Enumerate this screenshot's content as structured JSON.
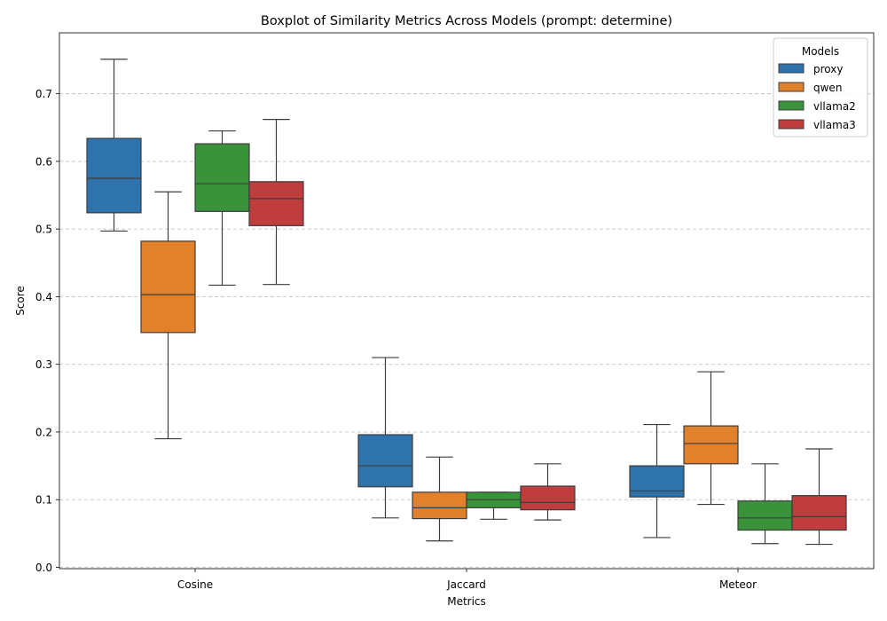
{
  "chart_data": {
    "type": "boxplot",
    "title": "Boxplot of Similarity Metrics Across Models (prompt: determine)",
    "xlabel": "Metrics",
    "ylabel": "Score",
    "ylim": [
      -0.002,
      0.79
    ],
    "yticks": [
      "0.0",
      "0.1",
      "0.2",
      "0.3",
      "0.4",
      "0.5",
      "0.6",
      "0.7"
    ],
    "grid": "y-dashed",
    "legend": {
      "title": "Models",
      "position": "top-right"
    },
    "categories": [
      "Cosine",
      "Jaccard",
      "Meteor"
    ],
    "series": [
      {
        "name": "proxy",
        "color": "#2f73ac",
        "boxes": [
          {
            "whislo": 0.497,
            "q1": 0.524,
            "med": 0.575,
            "q3": 0.634,
            "whishi": 0.751
          },
          {
            "whislo": 0.073,
            "q1": 0.119,
            "med": 0.15,
            "q3": 0.196,
            "whishi": 0.31
          },
          {
            "whislo": 0.044,
            "q1": 0.104,
            "med": 0.113,
            "q3": 0.15,
            "whishi": 0.211
          }
        ]
      },
      {
        "name": "qwen",
        "color": "#e1812c",
        "boxes": [
          {
            "whislo": 0.19,
            "q1": 0.347,
            "med": 0.403,
            "q3": 0.482,
            "whishi": 0.555
          },
          {
            "whislo": 0.039,
            "q1": 0.072,
            "med": 0.088,
            "q3": 0.111,
            "whishi": 0.163
          },
          {
            "whislo": 0.093,
            "q1": 0.153,
            "med": 0.183,
            "q3": 0.209,
            "whishi": 0.289
          }
        ]
      },
      {
        "name": "vllama2",
        "color": "#3a923a",
        "boxes": [
          {
            "whislo": 0.417,
            "q1": 0.526,
            "med": 0.567,
            "q3": 0.626,
            "whishi": 0.645
          },
          {
            "whislo": 0.071,
            "q1": 0.088,
            "med": 0.1,
            "q3": 0.111,
            "whishi": 0.111
          },
          {
            "whislo": 0.035,
            "q1": 0.055,
            "med": 0.073,
            "q3": 0.098,
            "whishi": 0.153
          }
        ]
      },
      {
        "name": "vllama3",
        "color": "#c03d3e",
        "boxes": [
          {
            "whislo": 0.418,
            "q1": 0.505,
            "med": 0.545,
            "q3": 0.57,
            "whishi": 0.662
          },
          {
            "whislo": 0.07,
            "q1": 0.085,
            "med": 0.096,
            "q3": 0.12,
            "whishi": 0.153
          },
          {
            "whislo": 0.034,
            "q1": 0.055,
            "med": 0.075,
            "q3": 0.106,
            "whishi": 0.175
          }
        ]
      }
    ]
  }
}
